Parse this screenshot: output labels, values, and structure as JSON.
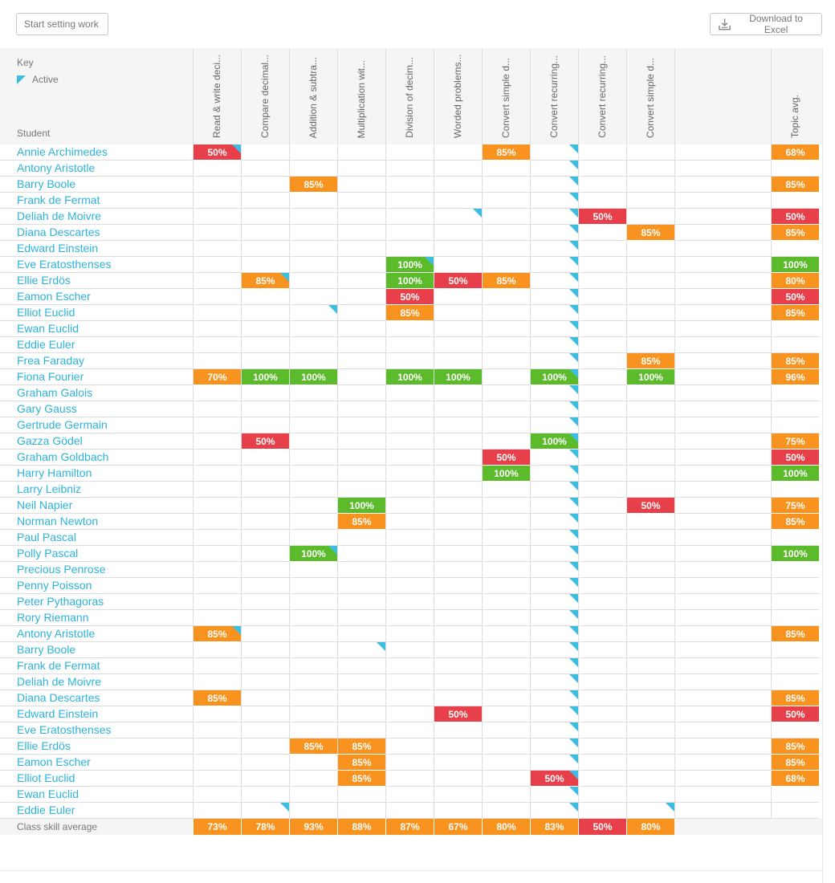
{
  "toolbar": {
    "start_label": "Start setting work",
    "excel_label": "Download to Excel",
    "excel_icon": "download-icon"
  },
  "key": {
    "title": "Key",
    "active_label": "Active",
    "active_color": "#3dbde0"
  },
  "student_header": "Student",
  "colors": {
    "red": "#e8404a",
    "orange": "#f7931e",
    "green": "#5cbb2a",
    "link": "#2eb3d9"
  },
  "skills": [
    "Read & write deci...",
    "Compare decimal...",
    "Addition & subtra...",
    "Multiplication wit...",
    "Division of decim...",
    "Worded problems...",
    "Convert simple d...",
    "Convert recurring...",
    "Convert recurring...",
    "Convert simple d..."
  ],
  "topic_header": "Topic avg.",
  "students": [
    {
      "name": "Annie Archimedes",
      "scores": [
        "50%",
        "",
        "",
        "",
        "",
        "",
        "85%",
        "",
        "",
        ""
      ],
      "active": [
        0,
        7
      ],
      "topic": "68%"
    },
    {
      "name": "Antony Aristotle",
      "scores": [
        "",
        "",
        "",
        "",
        "",
        "",
        "",
        "",
        "",
        ""
      ],
      "active": [
        7
      ],
      "topic": ""
    },
    {
      "name": "Barry Boole",
      "scores": [
        "",
        "",
        "85%",
        "",
        "",
        "",
        "",
        "",
        "",
        ""
      ],
      "active": [
        7
      ],
      "topic": "85%"
    },
    {
      "name": "Frank de Fermat",
      "scores": [
        "",
        "",
        "",
        "",
        "",
        "",
        "",
        "",
        "",
        ""
      ],
      "active": [
        7
      ],
      "topic": ""
    },
    {
      "name": "Deliah de Moivre",
      "scores": [
        "",
        "",
        "",
        "",
        "",
        "",
        "",
        "",
        "50%",
        ""
      ],
      "active": [
        5,
        7
      ],
      "topic": "50%"
    },
    {
      "name": "Diana Descartes",
      "scores": [
        "",
        "",
        "",
        "",
        "",
        "",
        "",
        "",
        "",
        "85%"
      ],
      "active": [
        7
      ],
      "topic": "85%"
    },
    {
      "name": "Edward Einstein",
      "scores": [
        "",
        "",
        "",
        "",
        "",
        "",
        "",
        "",
        "",
        ""
      ],
      "active": [
        7
      ],
      "topic": ""
    },
    {
      "name": "Eve Eratosthenses",
      "scores": [
        "",
        "",
        "",
        "",
        "100%",
        "",
        "",
        "",
        "",
        ""
      ],
      "active": [
        4,
        7
      ],
      "topic": "100%"
    },
    {
      "name": "Ellie Erdös",
      "scores": [
        "",
        "85%",
        "",
        "",
        "100%",
        "50%",
        "85%",
        "",
        "",
        ""
      ],
      "active": [
        1,
        7
      ],
      "topic": "80%"
    },
    {
      "name": "Eamon Escher",
      "scores": [
        "",
        "",
        "",
        "",
        "50%",
        "",
        "",
        "",
        "",
        ""
      ],
      "active": [
        7
      ],
      "topic": "50%"
    },
    {
      "name": "Elliot Euclid",
      "scores": [
        "",
        "",
        "",
        "",
        "85%",
        "",
        "",
        "",
        "",
        ""
      ],
      "active": [
        2,
        7
      ],
      "topic": "85%"
    },
    {
      "name": "Ewan Euclid",
      "scores": [
        "",
        "",
        "",
        "",
        "",
        "",
        "",
        "",
        "",
        ""
      ],
      "active": [
        7
      ],
      "topic": ""
    },
    {
      "name": "Eddie Euler",
      "scores": [
        "",
        "",
        "",
        "",
        "",
        "",
        "",
        "",
        "",
        ""
      ],
      "active": [
        7
      ],
      "topic": ""
    },
    {
      "name": "Frea Faraday",
      "scores": [
        "",
        "",
        "",
        "",
        "",
        "",
        "",
        "",
        "",
        "85%"
      ],
      "active": [
        7
      ],
      "topic": "85%"
    },
    {
      "name": "Fiona Fourier",
      "scores": [
        "70%",
        "100%",
        "100%",
        "",
        "100%",
        "100%",
        "",
        "100%",
        "",
        "100%"
      ],
      "active": [
        7
      ],
      "topic": "96%"
    },
    {
      "name": "Graham Galois",
      "scores": [
        "",
        "",
        "",
        "",
        "",
        "",
        "",
        "",
        "",
        ""
      ],
      "active": [
        7
      ],
      "topic": ""
    },
    {
      "name": "Gary Gauss",
      "scores": [
        "",
        "",
        "",
        "",
        "",
        "",
        "",
        "",
        "",
        ""
      ],
      "active": [
        7
      ],
      "topic": ""
    },
    {
      "name": "Gertrude Germain",
      "scores": [
        "",
        "",
        "",
        "",
        "",
        "",
        "",
        "",
        "",
        ""
      ],
      "active": [
        7
      ],
      "topic": ""
    },
    {
      "name": "Gazza Gödel",
      "scores": [
        "",
        "50%",
        "",
        "",
        "",
        "",
        "",
        "100%",
        "",
        ""
      ],
      "active": [
        7
      ],
      "topic": "75%"
    },
    {
      "name": "Graham Goldbach",
      "scores": [
        "",
        "",
        "",
        "",
        "",
        "",
        "50%",
        "",
        "",
        ""
      ],
      "active": [
        7
      ],
      "topic": "50%"
    },
    {
      "name": "Harry Hamilton",
      "scores": [
        "",
        "",
        "",
        "",
        "",
        "",
        "100%",
        "",
        "",
        ""
      ],
      "active": [
        7
      ],
      "topic": "100%"
    },
    {
      "name": "Larry Leibniz",
      "scores": [
        "",
        "",
        "",
        "",
        "",
        "",
        "",
        "",
        "",
        ""
      ],
      "active": [
        7
      ],
      "topic": ""
    },
    {
      "name": "Neil Napier",
      "scores": [
        "",
        "",
        "",
        "100%",
        "",
        "",
        "",
        "",
        "",
        "50%"
      ],
      "active": [
        7
      ],
      "topic": "75%"
    },
    {
      "name": "Norman Newton",
      "scores": [
        "",
        "",
        "",
        "85%",
        "",
        "",
        "",
        "",
        "",
        ""
      ],
      "active": [
        7
      ],
      "topic": "85%"
    },
    {
      "name": "Paul Pascal",
      "scores": [
        "",
        "",
        "",
        "",
        "",
        "",
        "",
        "",
        "",
        ""
      ],
      "active": [
        7
      ],
      "topic": ""
    },
    {
      "name": "Polly Pascal",
      "scores": [
        "",
        "",
        "100%",
        "",
        "",
        "",
        "",
        "",
        "",
        ""
      ],
      "active": [
        2,
        7
      ],
      "topic": "100%"
    },
    {
      "name": "Precious Penrose",
      "scores": [
        "",
        "",
        "",
        "",
        "",
        "",
        "",
        "",
        "",
        ""
      ],
      "active": [
        7
      ],
      "topic": ""
    },
    {
      "name": "Penny Poisson",
      "scores": [
        "",
        "",
        "",
        "",
        "",
        "",
        "",
        "",
        "",
        ""
      ],
      "active": [
        7
      ],
      "topic": ""
    },
    {
      "name": "Peter Pythagoras",
      "scores": [
        "",
        "",
        "",
        "",
        "",
        "",
        "",
        "",
        "",
        ""
      ],
      "active": [
        7
      ],
      "topic": ""
    },
    {
      "name": "Rory Riemann",
      "scores": [
        "",
        "",
        "",
        "",
        "",
        "",
        "",
        "",
        "",
        ""
      ],
      "active": [
        7
      ],
      "topic": ""
    },
    {
      "name": "Antony Aristotle",
      "scores": [
        "85%",
        "",
        "",
        "",
        "",
        "",
        "",
        "",
        "",
        ""
      ],
      "active": [
        0,
        7
      ],
      "topic": "85%"
    },
    {
      "name": "Barry Boole",
      "scores": [
        "",
        "",
        "",
        "",
        "",
        "",
        "",
        "",
        "",
        ""
      ],
      "active": [
        3,
        7
      ],
      "topic": ""
    },
    {
      "name": "Frank de Fermat",
      "scores": [
        "",
        "",
        "",
        "",
        "",
        "",
        "",
        "",
        "",
        ""
      ],
      "active": [
        7
      ],
      "topic": ""
    },
    {
      "name": "Deliah de Moivre",
      "scores": [
        "",
        "",
        "",
        "",
        "",
        "",
        "",
        "",
        "",
        ""
      ],
      "active": [
        7
      ],
      "topic": ""
    },
    {
      "name": "Diana Descartes",
      "scores": [
        "85%",
        "",
        "",
        "",
        "",
        "",
        "",
        "",
        "",
        ""
      ],
      "active": [
        7
      ],
      "topic": "85%"
    },
    {
      "name": "Edward Einstein",
      "scores": [
        "",
        "",
        "",
        "",
        "",
        "50%",
        "",
        "",
        "",
        ""
      ],
      "active": [
        7
      ],
      "topic": "50%"
    },
    {
      "name": "Eve Eratosthenses",
      "scores": [
        "",
        "",
        "",
        "",
        "",
        "",
        "",
        "",
        "",
        ""
      ],
      "active": [
        7
      ],
      "topic": ""
    },
    {
      "name": "Ellie Erdös",
      "scores": [
        "",
        "",
        "85%",
        "85%",
        "",
        "",
        "",
        "",
        "",
        ""
      ],
      "active": [
        7
      ],
      "topic": "85%"
    },
    {
      "name": "Eamon Escher",
      "scores": [
        "",
        "",
        "",
        "85%",
        "",
        "",
        "",
        "",
        "",
        ""
      ],
      "active": [
        7
      ],
      "topic": "85%"
    },
    {
      "name": "Elliot Euclid",
      "scores": [
        "",
        "",
        "",
        "85%",
        "",
        "",
        "",
        "50%",
        "",
        ""
      ],
      "active": [
        7
      ],
      "topic": "68%"
    },
    {
      "name": "Ewan Euclid",
      "scores": [
        "",
        "",
        "",
        "",
        "",
        "",
        "",
        "",
        "",
        ""
      ],
      "active": [
        7
      ],
      "topic": ""
    },
    {
      "name": "Eddie Euler",
      "scores": [
        "",
        "",
        "",
        "",
        "",
        "",
        "",
        "",
        "",
        ""
      ],
      "active": [
        1,
        7,
        9
      ],
      "topic": ""
    }
  ],
  "class_average": {
    "label": "Class skill average",
    "values": [
      "73%",
      "78%",
      "93%",
      "88%",
      "87%",
      "67%",
      "80%",
      "83%",
      "50%",
      "80%"
    ]
  }
}
